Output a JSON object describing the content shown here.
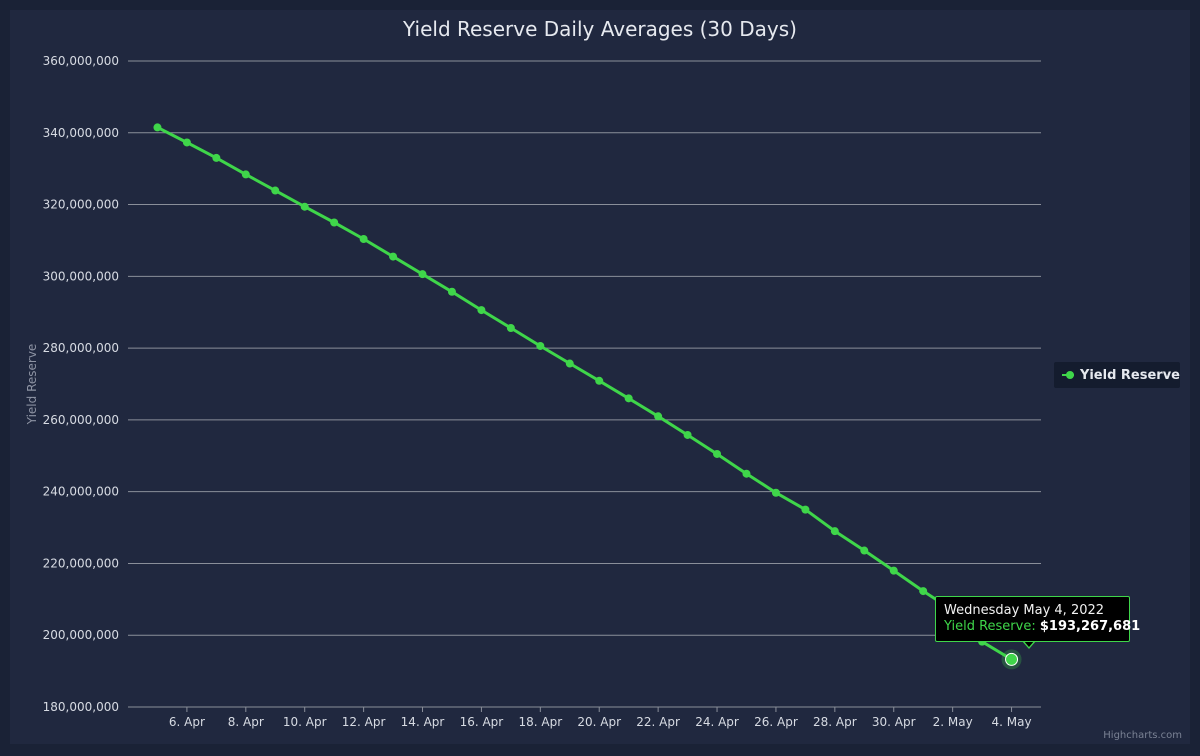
{
  "colors": {
    "background": "#1a2236",
    "series": "#3fd64a",
    "grid": "#8a8f9a",
    "text": "#e6e9ef",
    "tooltip_bg": "#000000"
  },
  "credits": "Highcharts.com",
  "tooltip": {
    "date": "Wednesday May 4, 2022",
    "series_label": "Yield Reserve:",
    "value": "$193,267,681"
  },
  "chart_data": {
    "type": "line",
    "title": "Yield Reserve Daily Averages (30 Days)",
    "xlabel": "",
    "ylabel": "Yield Reserve",
    "ylim": [
      180000000,
      360000000
    ],
    "y_ticks": [
      180000000,
      200000000,
      220000000,
      240000000,
      260000000,
      280000000,
      300000000,
      320000000,
      340000000,
      360000000
    ],
    "y_tick_labels": [
      "180,000,000",
      "200,000,000",
      "220,000,000",
      "240,000,000",
      "260,000,000",
      "280,000,000",
      "300,000,000",
      "320,000,000",
      "340,000,000",
      "360,000,000"
    ],
    "x_range": [
      "2022-04-04",
      "2022-05-05"
    ],
    "x_ticks": [
      "2022-04-06",
      "2022-04-08",
      "2022-04-10",
      "2022-04-12",
      "2022-04-14",
      "2022-04-16",
      "2022-04-18",
      "2022-04-20",
      "2022-04-22",
      "2022-04-24",
      "2022-04-26",
      "2022-04-28",
      "2022-04-30",
      "2022-05-02",
      "2022-05-04"
    ],
    "x_tick_labels": [
      "6. Apr",
      "8. Apr",
      "10. Apr",
      "12. Apr",
      "14. Apr",
      "16. Apr",
      "18. Apr",
      "20. Apr",
      "22. Apr",
      "24. Apr",
      "26. Apr",
      "28. Apr",
      "30. Apr",
      "2. May",
      "4. May"
    ],
    "grid": true,
    "legend_position": "right",
    "highlighted": "2022-05-04",
    "series": [
      {
        "name": "Yield Reserve",
        "color": "#3fd64a",
        "x": [
          "2022-04-05",
          "2022-04-06",
          "2022-04-07",
          "2022-04-08",
          "2022-04-09",
          "2022-04-10",
          "2022-04-11",
          "2022-04-12",
          "2022-04-13",
          "2022-04-14",
          "2022-04-15",
          "2022-04-16",
          "2022-04-17",
          "2022-04-18",
          "2022-04-19",
          "2022-04-20",
          "2022-04-21",
          "2022-04-22",
          "2022-04-23",
          "2022-04-24",
          "2022-04-25",
          "2022-04-26",
          "2022-04-27",
          "2022-04-28",
          "2022-04-29",
          "2022-04-30",
          "2022-05-01",
          "2022-05-02",
          "2022-05-03",
          "2022-05-04"
        ],
        "values": [
          341500000,
          337300000,
          333000000,
          328400000,
          323900000,
          319400000,
          315000000,
          310400000,
          305500000,
          300600000,
          295700000,
          290600000,
          285600000,
          280600000,
          275700000,
          270900000,
          266000000,
          261000000,
          255800000,
          250500000,
          245000000,
          239700000,
          235000000,
          229000000,
          223600000,
          218000000,
          212300000,
          207000000,
          198200000,
          193267681
        ]
      }
    ]
  }
}
